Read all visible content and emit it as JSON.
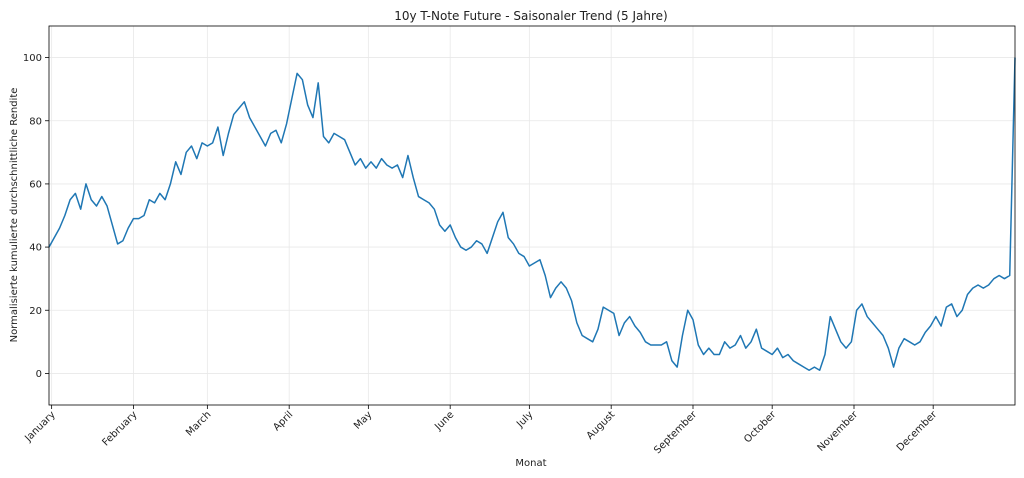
{
  "chart_data": {
    "type": "line",
    "title": "10y T-Note Future - Saisonaler Trend (5 Jahre)",
    "xlabel": "Monat",
    "ylabel": "Normalisierte kumulierte durchschnittliche Rendite",
    "months": [
      "January",
      "February",
      "March",
      "April",
      "May",
      "June",
      "July",
      "August",
      "September",
      "October",
      "November",
      "December"
    ],
    "month_start_days": [
      1,
      32,
      60,
      91,
      121,
      152,
      182,
      213,
      244,
      274,
      305,
      335
    ],
    "xlim": [
      0,
      366
    ],
    "ylim": [
      -10,
      110
    ],
    "yticks": [
      0,
      20,
      40,
      60,
      80,
      100
    ],
    "grid": true,
    "color": "#1f77b4",
    "series": [
      {
        "x": [
          0,
          2,
          4,
          6,
          8,
          10,
          12,
          14,
          16,
          18,
          20,
          22,
          24,
          26,
          28,
          30,
          32,
          34,
          36,
          38,
          40,
          42,
          44,
          46,
          48,
          50,
          52,
          54,
          56,
          58,
          60,
          62,
          64,
          66,
          68,
          70,
          72,
          74,
          76,
          78,
          80,
          82,
          84,
          86,
          88,
          90,
          92,
          94,
          96,
          98,
          100,
          102,
          104,
          106,
          108,
          110,
          112,
          114,
          116,
          118,
          120,
          122,
          124,
          126,
          128,
          130,
          132,
          134,
          136,
          138,
          140,
          142,
          144,
          146,
          148,
          150,
          152,
          154,
          156,
          158,
          160,
          162,
          164,
          166,
          168,
          170,
          172,
          174,
          176,
          178,
          180,
          182,
          184,
          186,
          188,
          190,
          192,
          194,
          196,
          198,
          200,
          202,
          204,
          206,
          208,
          210,
          212,
          214,
          216,
          218,
          220,
          222,
          224,
          226,
          228,
          230,
          232,
          234,
          236,
          238,
          240,
          242,
          244,
          246,
          248,
          250,
          252,
          254,
          256,
          258,
          260,
          262,
          264,
          266,
          268,
          270,
          272,
          274,
          276,
          278,
          280,
          282,
          284,
          286,
          288,
          290,
          292,
          294,
          296,
          298,
          300,
          302,
          304,
          306,
          308,
          310,
          312,
          314,
          316,
          318,
          320,
          322,
          324,
          326,
          328,
          330,
          332,
          334,
          336,
          338,
          340,
          342,
          344,
          346,
          348,
          350,
          352,
          354,
          356,
          358,
          360,
          362,
          364,
          366
        ],
        "y": [
          40,
          43,
          46,
          50,
          55,
          57,
          52,
          60,
          55,
          53,
          56,
          53,
          47,
          41,
          42,
          46,
          49,
          49,
          50,
          55,
          54,
          57,
          55,
          60,
          67,
          63,
          70,
          72,
          68,
          73,
          72,
          73,
          78,
          69,
          76,
          82,
          84,
          86,
          81,
          78,
          75,
          72,
          76,
          77,
          73,
          79,
          87,
          95,
          93,
          85,
          81,
          92,
          75,
          73,
          76,
          75,
          74,
          70,
          66,
          68,
          65,
          67,
          65,
          68,
          66,
          65,
          66,
          62,
          69,
          62,
          56,
          55,
          54,
          52,
          47,
          45,
          47,
          43,
          40,
          39,
          40,
          42,
          41,
          38,
          43,
          48,
          51,
          43,
          41,
          38,
          37,
          34,
          35,
          36,
          31,
          24,
          27,
          29,
          27,
          23,
          16,
          12,
          11,
          10,
          14,
          21,
          20,
          19,
          12,
          16,
          18,
          15,
          13,
          10,
          9,
          9,
          9,
          10,
          4,
          2,
          12,
          20,
          17,
          9,
          6,
          8,
          6,
          6,
          10,
          8,
          9,
          12,
          8,
          10,
          14,
          8,
          7,
          6,
          8,
          5,
          6,
          4,
          3,
          2,
          1,
          2,
          1,
          6,
          18,
          14,
          10,
          8,
          10,
          20,
          22,
          18,
          16,
          14,
          12,
          8,
          2,
          8,
          11,
          10,
          9,
          10,
          13,
          15,
          18,
          15,
          21,
          22,
          18,
          20,
          25,
          27,
          28,
          27,
          28,
          30,
          31,
          30,
          31,
          100
        ]
      }
    ]
  }
}
